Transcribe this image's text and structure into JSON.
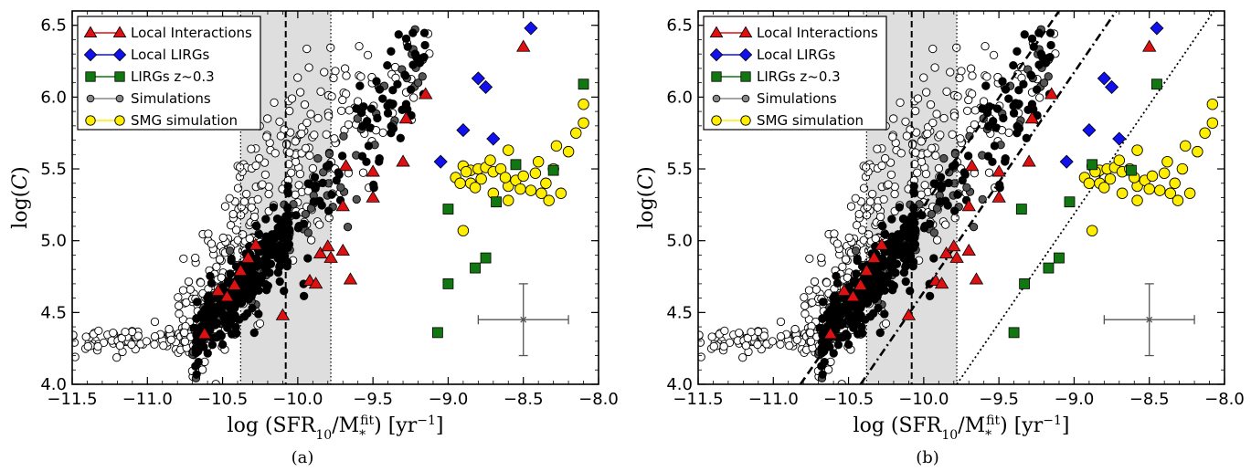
{
  "figure": {
    "panel_a_caption": "(a)",
    "panel_b_caption": "(b)"
  },
  "chart_data": [
    {
      "type": "scatter",
      "panel": "a",
      "xlabel": "log (SFR10/M*fit) [yr−1]",
      "ylabel": "log(C)",
      "xlim": [
        -11.5,
        -8.0
      ],
      "ylim": [
        4.0,
        6.6
      ],
      "xticks": [
        "−11.5",
        "−11.0",
        "−10.5",
        "−10.0",
        "−9.5",
        "−9.0",
        "−8.5",
        "−8.0"
      ],
      "yticks": [
        "4.0",
        "4.5",
        "5.0",
        "5.5",
        "6.0",
        "6.5"
      ],
      "legend_placement": "top-left",
      "shaded_band": [
        -10.38,
        -9.78
      ],
      "vertical_lines": [
        {
          "x": -10.38,
          "style": "dotted"
        },
        {
          "x": -10.08,
          "style": "dashed"
        },
        {
          "x": -9.78,
          "style": "dotted"
        }
      ],
      "error_bar": {
        "x": -8.5,
        "y": 4.45,
        "xerr": 0.3,
        "yerr": 0.25
      },
      "series": [
        {
          "name": "Local Interactions",
          "marker": "triangle",
          "color": "#dd1111",
          "points": [
            [
              -10.62,
              4.35
            ],
            [
              -10.53,
              4.65
            ],
            [
              -10.47,
              4.61
            ],
            [
              -10.42,
              4.69
            ],
            [
              -10.38,
              4.79
            ],
            [
              -10.33,
              4.88
            ],
            [
              -10.28,
              4.97
            ],
            [
              -10.1,
              4.48
            ],
            [
              -9.92,
              4.72
            ],
            [
              -9.88,
              4.7
            ],
            [
              -9.85,
              4.91
            ],
            [
              -9.8,
              4.96
            ],
            [
              -9.78,
              4.88
            ],
            [
              -9.7,
              5.24
            ],
            [
              -9.7,
              4.93
            ],
            [
              -9.65,
              4.73
            ],
            [
              -9.68,
              5.52
            ],
            [
              -9.5,
              5.3
            ],
            [
              -9.5,
              5.48
            ],
            [
              -9.28,
              5.85
            ],
            [
              -9.3,
              5.55
            ],
            [
              -9.15,
              6.02
            ],
            [
              -8.5,
              6.35
            ]
          ]
        },
        {
          "name": "Local LIRGs",
          "marker": "diamond",
          "color": "#1111ee",
          "points": [
            [
              -9.05,
              5.55
            ],
            [
              -8.9,
              5.77
            ],
            [
              -8.8,
              6.13
            ],
            [
              -8.75,
              6.07
            ],
            [
              -8.7,
              5.71
            ],
            [
              -8.45,
              6.48
            ]
          ]
        },
        {
          "name": "LIRGs z~0.3",
          "marker": "square",
          "color": "#117711",
          "points": [
            [
              -9.07,
              4.36
            ],
            [
              -9.0,
              4.7
            ],
            [
              -9.0,
              5.22
            ],
            [
              -8.82,
              4.81
            ],
            [
              -8.75,
              4.88
            ],
            [
              -8.68,
              5.27
            ],
            [
              -8.55,
              5.53
            ],
            [
              -8.3,
              5.49
            ],
            [
              -8.1,
              6.09
            ]
          ]
        },
        {
          "name": "Simulations",
          "marker": "circle",
          "color": "#888888",
          "points": []
        },
        {
          "name": "SMG simulation",
          "marker": "circle",
          "color": "#ffee00",
          "points": [
            [
              -8.9,
              5.07
            ],
            [
              -8.95,
              5.44
            ],
            [
              -8.9,
              5.52
            ],
            [
              -8.85,
              5.49
            ],
            [
              -8.85,
              5.4
            ],
            [
              -8.8,
              5.5
            ],
            [
              -8.78,
              5.43
            ],
            [
              -8.75,
              5.51
            ],
            [
              -8.7,
              5.48
            ],
            [
              -8.65,
              5.5
            ],
            [
              -8.6,
              5.38
            ],
            [
              -8.55,
              5.42
            ],
            [
              -8.5,
              5.45
            ],
            [
              -8.45,
              5.35
            ],
            [
              -8.4,
              5.55
            ],
            [
              -8.38,
              5.33
            ],
            [
              -8.35,
              5.4
            ],
            [
              -8.3,
              5.5
            ],
            [
              -8.28,
              5.66
            ],
            [
              -8.25,
              5.33
            ],
            [
              -8.2,
              5.62
            ],
            [
              -8.15,
              5.75
            ],
            [
              -8.1,
              5.82
            ],
            [
              -8.1,
              5.95
            ],
            [
              -8.6,
              5.28
            ],
            [
              -8.7,
              5.33
            ],
            [
              -8.82,
              5.37
            ],
            [
              -8.92,
              5.4
            ],
            [
              -8.88,
              5.48
            ],
            [
              -8.72,
              5.56
            ],
            [
              -8.62,
              5.44
            ],
            [
              -8.52,
              5.36
            ],
            [
              -8.42,
              5.47
            ],
            [
              -8.33,
              5.28
            ],
            [
              -8.6,
              5.63
            ]
          ]
        }
      ]
    },
    {
      "type": "scatter",
      "panel": "b",
      "xlabel": "log (SFR10/M*fit) [yr−1]",
      "ylabel": "log(C)",
      "xlim": [
        -11.5,
        -8.0
      ],
      "ylim": [
        4.0,
        6.6
      ],
      "xticks": [
        "−11.5",
        "−11.0",
        "−10.5",
        "−10.0",
        "−9.5",
        "−9.0",
        "−8.5",
        "−8.0"
      ],
      "yticks": [
        "4.0",
        "4.5",
        "5.0",
        "5.5",
        "6.0",
        "6.5"
      ],
      "legend_placement": "top-left",
      "shaded_band": [
        -10.38,
        -9.78
      ],
      "vertical_lines": [
        {
          "x": -10.38,
          "style": "dotted"
        },
        {
          "x": -10.08,
          "style": "dashed"
        },
        {
          "x": -9.78,
          "style": "dotted"
        }
      ],
      "diagonal_lines": [
        {
          "style": "dashed",
          "p1": [
            -10.82,
            4.0
          ],
          "p2": [
            -9.1,
            6.6
          ]
        },
        {
          "style": "dashdot",
          "p1": [
            -10.42,
            4.0
          ],
          "p2": [
            -8.72,
            6.6
          ]
        },
        {
          "style": "dotted",
          "p1": [
            -9.78,
            4.0
          ],
          "p2": [
            -8.07,
            6.6
          ]
        }
      ],
      "error_bar": {
        "x": -8.5,
        "y": 4.45,
        "xerr": 0.3,
        "yerr": 0.25
      },
      "series": [
        {
          "name": "Local Interactions",
          "marker": "triangle",
          "color": "#dd1111",
          "points": [
            [
              -10.62,
              4.35
            ],
            [
              -10.53,
              4.65
            ],
            [
              -10.47,
              4.61
            ],
            [
              -10.42,
              4.69
            ],
            [
              -10.38,
              4.79
            ],
            [
              -10.33,
              4.88
            ],
            [
              -10.28,
              4.97
            ],
            [
              -10.1,
              4.48
            ],
            [
              -9.92,
              4.72
            ],
            [
              -9.88,
              4.7
            ],
            [
              -9.85,
              4.91
            ],
            [
              -9.8,
              4.96
            ],
            [
              -9.78,
              4.88
            ],
            [
              -9.7,
              5.24
            ],
            [
              -9.7,
              4.93
            ],
            [
              -9.65,
              4.73
            ],
            [
              -9.68,
              5.52
            ],
            [
              -9.5,
              5.3
            ],
            [
              -9.5,
              5.48
            ],
            [
              -9.28,
              5.85
            ],
            [
              -9.3,
              5.55
            ],
            [
              -9.15,
              6.02
            ],
            [
              -8.5,
              6.35
            ]
          ]
        },
        {
          "name": "Local LIRGs",
          "marker": "diamond",
          "color": "#1111ee",
          "points": [
            [
              -9.05,
              5.55
            ],
            [
              -8.9,
              5.77
            ],
            [
              -8.8,
              6.13
            ],
            [
              -8.75,
              6.07
            ],
            [
              -8.7,
              5.71
            ],
            [
              -8.45,
              6.48
            ]
          ]
        },
        {
          "name": "LIRGs z~0.3",
          "marker": "square",
          "color": "#117711",
          "points": [
            [
              -9.4,
              4.36
            ],
            [
              -9.33,
              4.7
            ],
            [
              -9.35,
              5.22
            ],
            [
              -9.17,
              4.81
            ],
            [
              -9.1,
              4.88
            ],
            [
              -9.03,
              5.27
            ],
            [
              -8.88,
              5.53
            ],
            [
              -8.62,
              5.49
            ],
            [
              -8.45,
              6.09
            ]
          ]
        },
        {
          "name": "Simulations",
          "marker": "circle",
          "color": "#888888",
          "points": []
        },
        {
          "name": "SMG simulation",
          "marker": "circle",
          "color": "#ffee00",
          "points": [
            [
              -8.88,
              5.07
            ],
            [
              -8.93,
              5.44
            ],
            [
              -8.88,
              5.52
            ],
            [
              -8.83,
              5.49
            ],
            [
              -8.83,
              5.4
            ],
            [
              -8.78,
              5.5
            ],
            [
              -8.76,
              5.43
            ],
            [
              -8.73,
              5.51
            ],
            [
              -8.68,
              5.48
            ],
            [
              -8.63,
              5.5
            ],
            [
              -8.58,
              5.38
            ],
            [
              -8.53,
              5.42
            ],
            [
              -8.48,
              5.45
            ],
            [
              -8.43,
              5.35
            ],
            [
              -8.38,
              5.55
            ],
            [
              -8.36,
              5.33
            ],
            [
              -8.33,
              5.4
            ],
            [
              -8.28,
              5.5
            ],
            [
              -8.26,
              5.66
            ],
            [
              -8.23,
              5.33
            ],
            [
              -8.18,
              5.62
            ],
            [
              -8.13,
              5.75
            ],
            [
              -8.08,
              5.82
            ],
            [
              -8.08,
              5.95
            ],
            [
              -8.58,
              5.28
            ],
            [
              -8.68,
              5.33
            ],
            [
              -8.8,
              5.37
            ],
            [
              -8.9,
              5.4
            ],
            [
              -8.86,
              5.48
            ],
            [
              -8.7,
              5.56
            ],
            [
              -8.6,
              5.44
            ],
            [
              -8.5,
              5.36
            ],
            [
              -8.4,
              5.47
            ],
            [
              -8.31,
              5.28
            ],
            [
              -8.58,
              5.63
            ]
          ]
        }
      ]
    }
  ]
}
